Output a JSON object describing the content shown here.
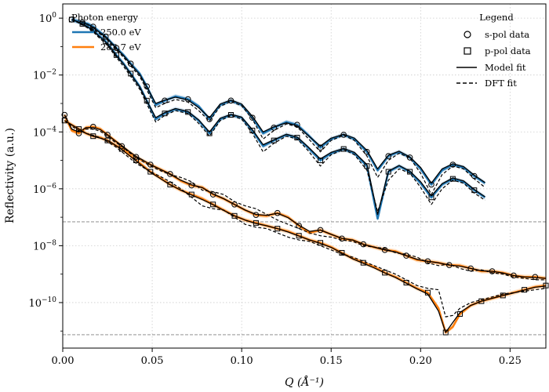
{
  "chart_data": {
    "type": "scatter",
    "xlabel": "Q (Å⁻¹)",
    "ylabel": "Reflectivity (a.u.)",
    "xlim": [
      0.0,
      0.27
    ],
    "ylim_log10": [
      -11.6,
      0.5
    ],
    "y_scale": "log",
    "grid": true,
    "x_ticks": [
      "0.00",
      "0.05",
      "0.10",
      "0.15",
      "0.20",
      "0.25"
    ],
    "x_tick_values": [
      0.0,
      0.05,
      0.1,
      0.15,
      0.2,
      0.25
    ],
    "y_ticks": [
      0,
      -2,
      -4,
      -6,
      -8,
      -10
    ],
    "reference_lines_log10": [
      -7.16,
      -11.13
    ],
    "legend_energy": {
      "title": "Photon energy",
      "entries": [
        {
          "label": "250.0 eV",
          "color": "#1f77b4"
        },
        {
          "label": "283.7 eV",
          "color": "#ff7f0e"
        }
      ]
    },
    "legend_main": {
      "title": "Legend",
      "entries": [
        {
          "label": "s-pol data",
          "marker": "circle"
        },
        {
          "label": "p-pol data",
          "marker": "square"
        },
        {
          "label": "Model fit",
          "line": "solid"
        },
        {
          "label": "DFT fit",
          "line": "dashed"
        }
      ]
    },
    "series": [
      {
        "energy": "250.0 eV",
        "polarization": "s-pol",
        "color": "#1f77b4",
        "marker": "circle",
        "x": [
          0.005,
          0.008,
          0.011,
          0.014,
          0.017,
          0.02,
          0.024,
          0.027,
          0.03,
          0.034,
          0.038,
          0.043,
          0.047,
          0.052,
          0.057,
          0.063,
          0.07,
          0.076,
          0.082,
          0.088,
          0.094,
          0.1,
          0.106,
          0.112,
          0.118,
          0.125,
          0.131,
          0.137,
          0.144,
          0.15,
          0.157,
          0.163,
          0.17,
          0.176,
          0.182,
          0.188,
          0.194,
          0.2,
          0.206,
          0.212,
          0.218,
          0.224,
          0.23,
          0.236
        ],
        "logy": [
          -0.05,
          -0.1,
          -0.15,
          -0.2,
          -0.3,
          -0.45,
          -0.65,
          -0.85,
          -1.05,
          -1.3,
          -1.6,
          -1.95,
          -2.4,
          -3.05,
          -2.9,
          -2.75,
          -2.85,
          -3.1,
          -3.55,
          -3.05,
          -2.9,
          -3.05,
          -3.5,
          -4.05,
          -3.85,
          -3.65,
          -3.75,
          -4.1,
          -4.55,
          -4.25,
          -4.1,
          -4.25,
          -4.7,
          -5.35,
          -4.85,
          -4.7,
          -4.9,
          -5.3,
          -5.85,
          -5.35,
          -5.15,
          -5.25,
          -5.55,
          -5.8
        ],
        "fit_logy": [
          -0.05,
          -0.1,
          -0.15,
          -0.22,
          -0.32,
          -0.47,
          -0.66,
          -0.86,
          -1.07,
          -1.32,
          -1.62,
          -1.98,
          -2.42,
          -3.0,
          -2.88,
          -2.78,
          -2.88,
          -3.15,
          -3.5,
          -3.02,
          -2.88,
          -3.02,
          -3.45,
          -4.0,
          -3.82,
          -3.68,
          -3.78,
          -4.12,
          -4.5,
          -4.22,
          -4.08,
          -4.22,
          -4.65,
          -5.3,
          -4.82,
          -4.68,
          -4.88,
          -5.25,
          -5.8,
          -5.3,
          -5.12,
          -5.22,
          -5.52,
          -5.78
        ],
        "dft_logy": [
          -0.05,
          -0.12,
          -0.18,
          -0.26,
          -0.37,
          -0.52,
          -0.7,
          -0.92,
          -1.12,
          -1.38,
          -1.68,
          -2.05,
          -2.52,
          -3.15,
          -3.0,
          -2.86,
          -2.95,
          -3.25,
          -3.62,
          -3.1,
          -2.93,
          -3.08,
          -3.55,
          -4.25,
          -3.95,
          -3.72,
          -3.82,
          -4.22,
          -4.7,
          -4.3,
          -4.12,
          -4.3,
          -4.85,
          -5.6,
          -5.0,
          -4.75,
          -4.92,
          -5.45,
          -6.2,
          -5.5,
          -5.2,
          -5.3,
          -5.65,
          -5.95
        ]
      },
      {
        "energy": "250.0 eV",
        "polarization": "p-pol",
        "color": "#1f77b4",
        "marker": "square",
        "x": [
          0.005,
          0.008,
          0.011,
          0.014,
          0.017,
          0.02,
          0.024,
          0.027,
          0.03,
          0.034,
          0.038,
          0.043,
          0.047,
          0.052,
          0.057,
          0.063,
          0.07,
          0.076,
          0.082,
          0.088,
          0.094,
          0.1,
          0.106,
          0.112,
          0.118,
          0.125,
          0.131,
          0.137,
          0.144,
          0.15,
          0.157,
          0.163,
          0.17,
          0.176,
          0.182,
          0.188,
          0.194,
          0.2,
          0.206,
          0.212,
          0.218,
          0.224,
          0.23,
          0.236
        ],
        "logy": [
          -0.05,
          -0.12,
          -0.2,
          -0.3,
          -0.42,
          -0.6,
          -0.82,
          -1.05,
          -1.3,
          -1.6,
          -1.95,
          -2.4,
          -2.9,
          -3.55,
          -3.35,
          -3.2,
          -3.3,
          -3.6,
          -4.05,
          -3.55,
          -3.4,
          -3.5,
          -3.95,
          -4.5,
          -4.3,
          -4.1,
          -4.2,
          -4.55,
          -5.0,
          -4.75,
          -4.6,
          -4.75,
          -5.2,
          -7.05,
          -5.4,
          -5.2,
          -5.4,
          -5.8,
          -6.3,
          -5.85,
          -5.65,
          -5.75,
          -6.05,
          -6.3
        ],
        "fit_logy": [
          -0.05,
          -0.12,
          -0.2,
          -0.31,
          -0.44,
          -0.62,
          -0.84,
          -1.07,
          -1.32,
          -1.62,
          -1.97,
          -2.42,
          -2.92,
          -3.5,
          -3.32,
          -3.18,
          -3.28,
          -3.58,
          -4.0,
          -3.52,
          -3.38,
          -3.48,
          -3.92,
          -4.45,
          -4.28,
          -4.08,
          -4.18,
          -4.52,
          -4.95,
          -4.72,
          -4.58,
          -4.72,
          -5.15,
          -6.9,
          -5.38,
          -5.18,
          -5.38,
          -5.75,
          -6.25,
          -5.82,
          -5.62,
          -5.72,
          -6.02,
          -6.28
        ],
        "dft_logy": [
          -0.06,
          -0.14,
          -0.23,
          -0.35,
          -0.48,
          -0.67,
          -0.9,
          -1.13,
          -1.38,
          -1.7,
          -2.05,
          -2.5,
          -3.02,
          -3.65,
          -3.42,
          -3.25,
          -3.35,
          -3.7,
          -4.15,
          -3.6,
          -3.42,
          -3.55,
          -4.05,
          -4.7,
          -4.4,
          -4.15,
          -4.25,
          -4.65,
          -5.2,
          -4.8,
          -4.62,
          -4.8,
          -5.35,
          -6.8,
          -5.7,
          -5.3,
          -5.45,
          -5.95,
          -6.55,
          -6.0,
          -5.7,
          -5.8,
          -6.15,
          -6.4
        ]
      },
      {
        "energy": "283.7 eV",
        "polarization": "s-pol",
        "color": "#ff7f0e",
        "marker": "circle",
        "x": [
          0.001,
          0.005,
          0.009,
          0.013,
          0.017,
          0.021,
          0.025,
          0.029,
          0.033,
          0.037,
          0.041,
          0.045,
          0.049,
          0.054,
          0.06,
          0.066,
          0.072,
          0.078,
          0.084,
          0.09,
          0.096,
          0.102,
          0.108,
          0.114,
          0.12,
          0.126,
          0.132,
          0.138,
          0.144,
          0.15,
          0.156,
          0.162,
          0.168,
          0.174,
          0.18,
          0.186,
          0.192,
          0.198,
          0.204,
          0.21,
          0.216,
          0.222,
          0.228,
          0.234,
          0.24,
          0.246,
          0.252,
          0.258,
          0.264,
          0.27
        ],
        "logy": [
          -3.4,
          -3.95,
          -4.05,
          -3.85,
          -3.82,
          -3.9,
          -4.1,
          -4.3,
          -4.5,
          -4.7,
          -4.88,
          -5.02,
          -5.15,
          -5.3,
          -5.48,
          -5.72,
          -5.88,
          -5.95,
          -6.2,
          -6.35,
          -6.55,
          -6.75,
          -6.92,
          -6.95,
          -6.85,
          -7.0,
          -7.3,
          -7.55,
          -7.45,
          -7.6,
          -7.75,
          -7.8,
          -7.95,
          -8.05,
          -8.15,
          -8.2,
          -8.35,
          -8.5,
          -8.55,
          -8.6,
          -8.68,
          -8.7,
          -8.8,
          -8.9,
          -8.9,
          -8.95,
          -9.05,
          -9.1,
          -9.1,
          -9.15
        ],
        "fit_logy": [
          -3.4,
          -3.9,
          -4.0,
          -3.85,
          -3.85,
          -3.92,
          -4.1,
          -4.3,
          -4.48,
          -4.68,
          -4.86,
          -5.0,
          -5.15,
          -5.3,
          -5.48,
          -5.7,
          -5.86,
          -5.96,
          -6.18,
          -6.35,
          -6.55,
          -6.75,
          -6.9,
          -6.93,
          -6.86,
          -7.02,
          -7.28,
          -7.5,
          -7.45,
          -7.6,
          -7.74,
          -7.8,
          -7.95,
          -8.05,
          -8.15,
          -8.22,
          -8.35,
          -8.48,
          -8.55,
          -8.6,
          -8.68,
          -8.72,
          -8.8,
          -8.88,
          -8.9,
          -8.96,
          -9.05,
          -9.1,
          -9.12,
          -9.15
        ],
        "dft_logy": [
          -3.4,
          -3.9,
          -4.0,
          -3.9,
          -3.9,
          -3.98,
          -4.15,
          -4.35,
          -4.5,
          -4.72,
          -4.9,
          -5.05,
          -5.2,
          -5.35,
          -5.5,
          -5.6,
          -5.75,
          -6.05,
          -6.1,
          -6.2,
          -6.45,
          -6.6,
          -6.7,
          -6.9,
          -7.1,
          -7.25,
          -7.4,
          -7.55,
          -7.65,
          -7.7,
          -7.8,
          -7.85,
          -8.0,
          -8.05,
          -8.1,
          -8.25,
          -8.3,
          -8.4,
          -8.6,
          -8.7,
          -8.65,
          -8.8,
          -8.9,
          -8.85,
          -8.95,
          -9.0,
          -9.1,
          -9.15,
          -9.2,
          -9.2
        ]
      },
      {
        "energy": "283.7 eV",
        "polarization": "p-pol",
        "color": "#ff7f0e",
        "marker": "square",
        "x": [
          0.001,
          0.005,
          0.009,
          0.013,
          0.017,
          0.021,
          0.025,
          0.029,
          0.033,
          0.037,
          0.041,
          0.045,
          0.049,
          0.054,
          0.06,
          0.066,
          0.072,
          0.078,
          0.084,
          0.09,
          0.096,
          0.102,
          0.108,
          0.114,
          0.12,
          0.126,
          0.132,
          0.138,
          0.144,
          0.15,
          0.156,
          0.162,
          0.168,
          0.174,
          0.18,
          0.186,
          0.192,
          0.198,
          0.204,
          0.21,
          0.214,
          0.218,
          0.222,
          0.228,
          0.234,
          0.24,
          0.246,
          0.252,
          0.258,
          0.264,
          0.27
        ],
        "logy": [
          -3.6,
          -3.75,
          -3.9,
          -4.05,
          -4.15,
          -4.2,
          -4.3,
          -4.45,
          -4.6,
          -4.8,
          -5.0,
          -5.2,
          -5.4,
          -5.6,
          -5.85,
          -6.05,
          -6.2,
          -6.35,
          -6.55,
          -6.75,
          -6.95,
          -7.1,
          -7.2,
          -7.3,
          -7.4,
          -7.5,
          -7.65,
          -7.8,
          -7.9,
          -8.05,
          -8.25,
          -8.45,
          -8.6,
          -8.75,
          -8.95,
          -9.1,
          -9.3,
          -9.5,
          -9.65,
          -10.2,
          -11.05,
          -10.85,
          -10.4,
          -10.1,
          -9.95,
          -9.85,
          -9.75,
          -9.65,
          -9.55,
          -9.45,
          -9.4
        ],
        "fit_logy": [
          -3.6,
          -3.75,
          -3.9,
          -4.05,
          -4.15,
          -4.22,
          -4.3,
          -4.45,
          -4.62,
          -4.82,
          -5.02,
          -5.22,
          -5.42,
          -5.62,
          -5.86,
          -6.05,
          -6.22,
          -6.38,
          -6.56,
          -6.76,
          -6.95,
          -7.1,
          -7.22,
          -7.3,
          -7.4,
          -7.52,
          -7.66,
          -7.8,
          -7.92,
          -8.06,
          -8.26,
          -8.46,
          -8.62,
          -8.78,
          -8.96,
          -9.12,
          -9.32,
          -9.52,
          -9.7,
          -10.3,
          -11.05,
          -10.7,
          -10.35,
          -10.1,
          -9.95,
          -9.85,
          -9.75,
          -9.66,
          -9.56,
          -9.46,
          -9.42
        ],
        "dft_logy": [
          -3.6,
          -3.8,
          -3.95,
          -4.05,
          -4.12,
          -4.2,
          -4.35,
          -4.5,
          -4.7,
          -4.9,
          -5.1,
          -5.25,
          -5.4,
          -5.55,
          -5.75,
          -6.0,
          -6.3,
          -6.6,
          -6.7,
          -6.75,
          -7.0,
          -7.25,
          -7.35,
          -7.4,
          -7.55,
          -7.7,
          -7.8,
          -7.85,
          -8.0,
          -8.15,
          -8.3,
          -8.4,
          -8.55,
          -8.7,
          -8.85,
          -9.0,
          -9.2,
          -9.4,
          -9.5,
          -9.55,
          -10.5,
          -10.45,
          -10.2,
          -10.0,
          -9.9,
          -9.8,
          -9.7,
          -9.65,
          -9.6,
          -9.55,
          -9.5
        ]
      }
    ]
  }
}
